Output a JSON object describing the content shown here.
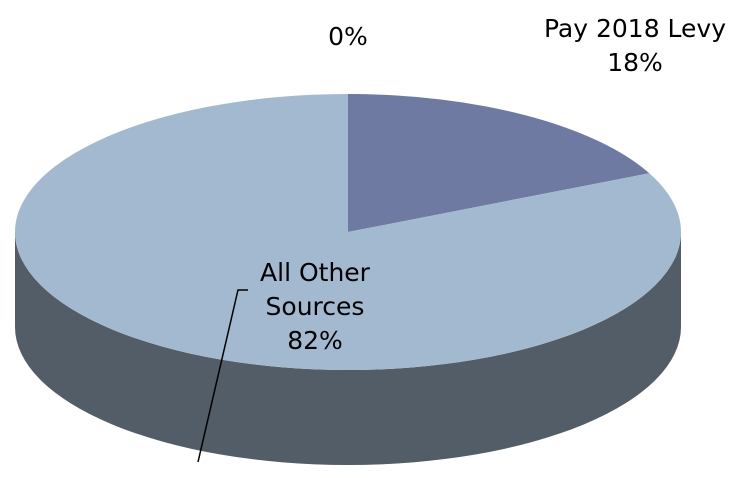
{
  "chart_data": {
    "type": "pie",
    "categories": [
      "Pay 2018 Levy",
      "All Other Sources",
      null
    ],
    "values": [
      18,
      82,
      0
    ],
    "value_labels": [
      "18%",
      "82%",
      "0%"
    ],
    "colors": [
      "#6f7aa2",
      "#a3b9cf",
      "#8c9bb8"
    ]
  }
}
